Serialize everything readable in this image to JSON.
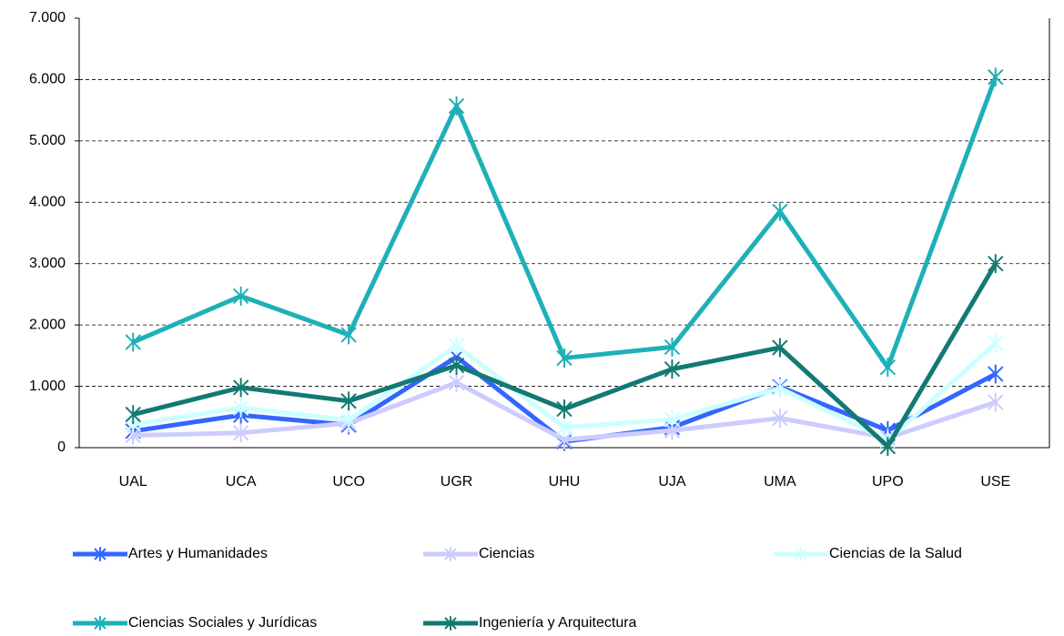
{
  "chart_data": {
    "type": "line",
    "categories": [
      "UAL",
      "UCA",
      "UCO",
      "UGR",
      "UHU",
      "UJA",
      "UMA",
      "UPO",
      "USE"
    ],
    "series": [
      {
        "name": "Artes y Humanidades",
        "color": "#3366ff",
        "values": [
          270,
          530,
          370,
          1480,
          100,
          330,
          990,
          280,
          1200
        ]
      },
      {
        "name": "Ciencias",
        "color": "#ccccff",
        "values": [
          200,
          240,
          400,
          1060,
          130,
          280,
          480,
          160,
          740
        ]
      },
      {
        "name": "Ciencias de la Salud",
        "color": "#ccffff",
        "values": [
          380,
          650,
          450,
          1660,
          330,
          460,
          970,
          120,
          1700
        ]
      },
      {
        "name": "Ciencias Sociales y Jurídicas",
        "color": "#1eb0b8",
        "values": [
          1720,
          2470,
          1840,
          5570,
          1460,
          1640,
          3850,
          1310,
          6040
        ]
      },
      {
        "name": "Ingeniería y Arquitectura",
        "color": "#127a72",
        "values": [
          540,
          980,
          760,
          1340,
          630,
          1280,
          1630,
          20,
          3000
        ]
      }
    ],
    "ylim": [
      0,
      7000
    ],
    "yticks": [
      0,
      {
        "value": 1000,
        "label": "1.000"
      },
      {
        "value": 2000,
        "label": "2.000"
      },
      {
        "value": 3000,
        "label": "3.000"
      },
      {
        "value": 4000,
        "label": "4.000"
      },
      {
        "value": 5000,
        "label": "5.000"
      },
      {
        "value": 6000,
        "label": "6.000"
      },
      {
        "value": 7000,
        "label": "7.000"
      }
    ],
    "grid": true,
    "legend": "bottom"
  }
}
